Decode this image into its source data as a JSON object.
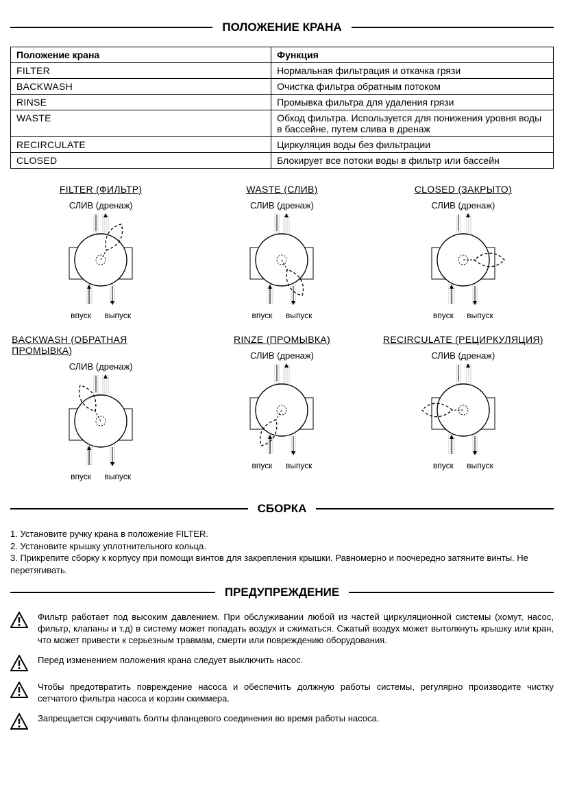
{
  "section_positions_title": "ПОЛОЖЕНИЕ КРАНА",
  "table": {
    "header_position": "Положение крана",
    "header_function": "Функция",
    "rows": [
      {
        "pos": "FILTER",
        "func": "Нормальная фильтрация и откачка грязи"
      },
      {
        "pos": "BACKWASH",
        "func": "Очистка фильтра обратным потоком"
      },
      {
        "pos": "RINSE",
        "func": "Промывка фильтра для удаления грязи"
      },
      {
        "pos": "WASTE",
        "func": "Обход фильтра. Используется для понижения уровня воды в бассейне, путем слива в дренаж"
      },
      {
        "pos": "RECIRCULATE",
        "func": "Циркуляция воды без фильтрации"
      },
      {
        "pos": "CLOSED",
        "func": "Блокирует все потоки воды в фильтр или бассейн"
      }
    ]
  },
  "diagrams": {
    "drain_label": "СЛИВ (дренаж)",
    "inlet_label": "впуск",
    "outlet_label": "выпуск",
    "items": [
      {
        "title": "FILTER (ФИЛЬТР)",
        "handle_angle": 300
      },
      {
        "title": "WASTE (СЛИВ)",
        "handle_angle": 60
      },
      {
        "title": "CLOSED (ЗАКРЫТО)",
        "handle_angle": 0
      },
      {
        "title": "BACKWASH (ОБРАТНАЯ ПРОМЫВКА)",
        "handle_angle": 240
      },
      {
        "title": "RINZE (ПРОМЫВКА)",
        "handle_angle": 120
      },
      {
        "title": "RECIRCULATE (РЕЦИРКУЛЯЦИЯ)",
        "handle_angle": 180
      }
    ]
  },
  "section_assembly_title": "СБОРКА",
  "assembly_text": "1. Установите ручку крана в положение FILTER.\n2. Установите крышку уплотнительного кольца.\n3. Прикрепите сборку к корпусу при помощи винтов для закрепления крышки. Равномерно и поочередно затяните винты. Не перетягивать.",
  "section_warning_title": "ПРЕДУПРЕЖДЕНИЕ",
  "warnings": [
    "Фильтр работает под высоким давлением. При обслуживании любой из частей циркуляционной системы (хомут, насос, фильтр, клапаны и т.д) в систему может попадать воздух и сжиматься. Сжатый воздух может вытолкнуть крышку или кран, что может привести к серьезным травмам, смерти или повреждению оборудования.",
    "Перед изменением положения крана следует выключить насос.",
    "Чтобы предотвратить повреждение насоса и обеспечить должную работы системы, регулярно производите чистку сетчатого фильтра насоса и корзин скиммера.",
    "Запрещается скручивать болты фланцевого соединения во время работы насоса."
  ],
  "colors": {
    "text": "#000000",
    "bg": "#ffffff",
    "line": "#000000",
    "pattern": "#777777"
  }
}
